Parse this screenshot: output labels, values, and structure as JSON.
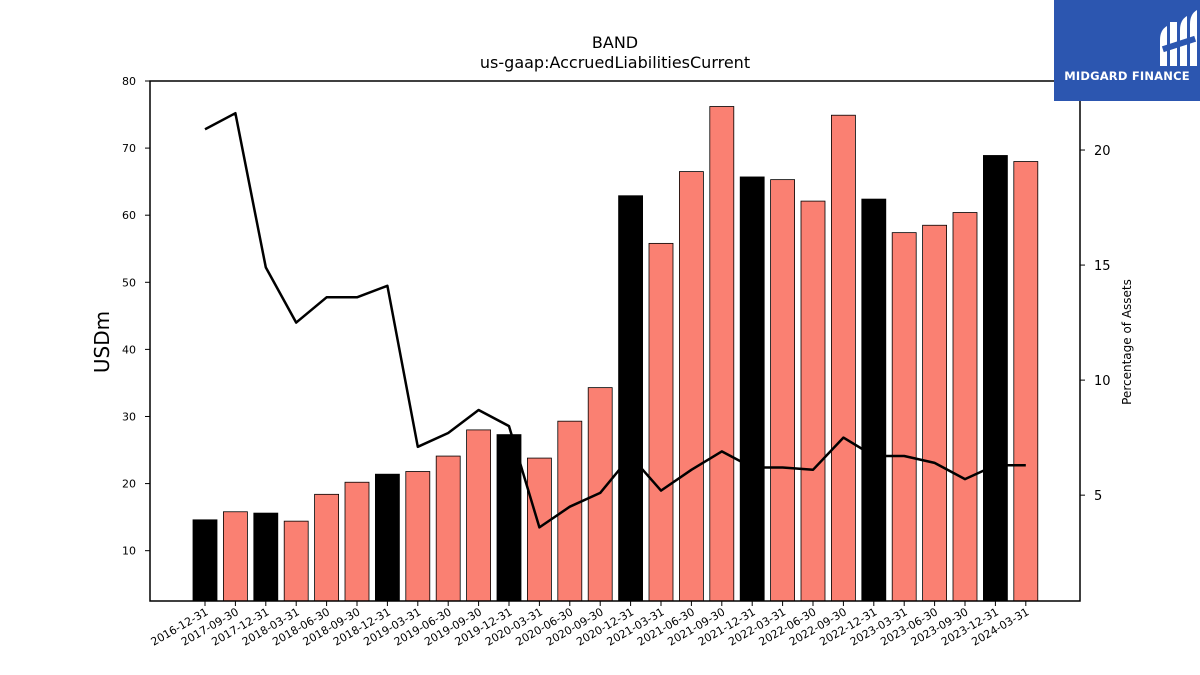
{
  "logo": {
    "text": "MIDGARD FINANCE",
    "icon": "midgard-logo-icon",
    "background": "#2c56b0"
  },
  "chart_data": {
    "type": "bar",
    "title": "BAND",
    "subtitle": "us-gaap:AccruedLiabilitiesCurrent",
    "ylabel": "USDm",
    "y2label": "Percentage of Assets",
    "ylim": [
      2.5,
      80
    ],
    "y2lim": [
      0.4,
      23.0
    ],
    "yticks": [
      10,
      20,
      30,
      40,
      50,
      60,
      70,
      80
    ],
    "y2ticks": [
      5,
      10,
      15,
      20
    ],
    "categories": [
      "2016-12-31",
      "2017-09-30",
      "2017-12-31",
      "2018-03-31",
      "2018-06-30",
      "2018-09-30",
      "2018-12-31",
      "2019-03-31",
      "2019-06-30",
      "2019-09-30",
      "2019-12-31",
      "2020-03-31",
      "2020-06-30",
      "2020-09-30",
      "2020-12-31",
      "2021-03-31",
      "2021-06-30",
      "2021-09-30",
      "2021-12-31",
      "2022-03-31",
      "2022-06-30",
      "2022-09-30",
      "2022-12-31",
      "2023-03-31",
      "2023-06-30",
      "2023-09-30",
      "2023-12-31",
      "2024-03-31"
    ],
    "series": [
      {
        "type": "bar",
        "values": [
          14.6,
          15.8,
          15.6,
          14.4,
          18.4,
          20.2,
          21.4,
          21.8,
          24.1,
          28.0,
          27.3,
          23.8,
          29.3,
          34.3,
          62.9,
          55.8,
          66.5,
          76.2,
          65.7,
          65.3,
          62.1,
          74.9,
          62.4,
          57.4,
          58.5,
          60.4,
          68.9,
          68.0
        ],
        "colors": [
          "#000000",
          "#fa8072",
          "#000000",
          "#fa8072",
          "#fa8072",
          "#fa8072",
          "#000000",
          "#fa8072",
          "#fa8072",
          "#fa8072",
          "#000000",
          "#fa8072",
          "#fa8072",
          "#fa8072",
          "#000000",
          "#fa8072",
          "#fa8072",
          "#fa8072",
          "#000000",
          "#fa8072",
          "#fa8072",
          "#fa8072",
          "#000000",
          "#fa8072",
          "#fa8072",
          "#fa8072",
          "#000000",
          "#fa8072"
        ]
      },
      {
        "type": "line",
        "axis": "right",
        "color": "#000000",
        "values": [
          20.9,
          21.6,
          14.9,
          12.5,
          13.6,
          13.6,
          14.1,
          7.1,
          7.7,
          8.7,
          8.0,
          3.6,
          4.5,
          5.1,
          6.7,
          5.2,
          6.1,
          6.9,
          6.2,
          6.2,
          6.1,
          7.5,
          6.7,
          6.7,
          6.4,
          5.7,
          6.3,
          6.3
        ]
      }
    ],
    "colors": {
      "annual": "#000000",
      "quarterly": "#fa8072",
      "line": "#000000"
    }
  }
}
